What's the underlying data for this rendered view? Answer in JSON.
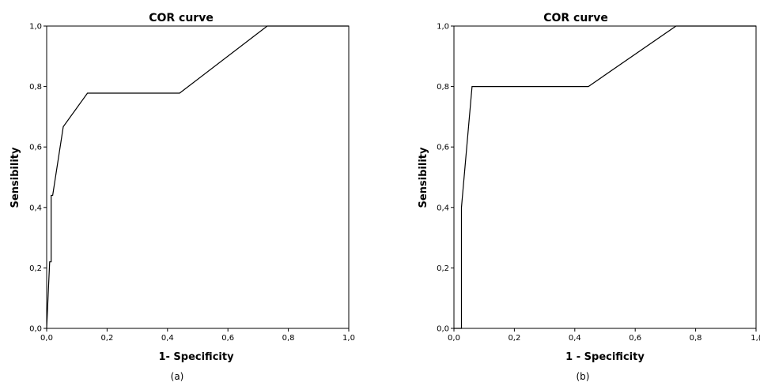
{
  "chart_data": [
    {
      "type": "line",
      "title": "COR curve",
      "xlabel": "1- Specificity",
      "ylabel": "Sensibility",
      "caption": "(a)",
      "xlim": [
        0,
        1
      ],
      "ylim": [
        0,
        1
      ],
      "xticks": [
        "0,0",
        "0,2",
        "0,4",
        "0,6",
        "0,8",
        "1,0"
      ],
      "yticks": [
        "0,0",
        "0,2",
        "0,4",
        "0,6",
        "0,8",
        "1,0"
      ],
      "grid": false,
      "series": [
        {
          "x": [
            0,
            0.005,
            0.01,
            0.015,
            0.015,
            0.02,
            0.055,
            0.135,
            0.44,
            0.73,
            1
          ],
          "y": [
            0,
            0.11,
            0.22,
            0.22,
            0.44,
            0.44,
            0.667,
            0.778,
            0.778,
            1,
            1
          ]
        }
      ]
    },
    {
      "type": "line",
      "title": "COR curve",
      "xlabel": "1 - Specificity",
      "ylabel": "Sensibility",
      "caption": "(b)",
      "xlim": [
        0,
        1
      ],
      "ylim": [
        0,
        1
      ],
      "xticks": [
        "0,0",
        "0,2",
        "0,4",
        "0,6",
        "0,8",
        "1,("
      ],
      "yticks": [
        "0,0",
        "0,2",
        "0,4",
        "0,6",
        "0,8",
        "1,0"
      ],
      "grid": false,
      "series": [
        {
          "x": [
            0,
            0.025,
            0.025,
            0.06,
            0.445,
            0.735,
            1
          ],
          "y": [
            0,
            0,
            0.4,
            0.8,
            0.8,
            1,
            1
          ]
        }
      ]
    }
  ]
}
